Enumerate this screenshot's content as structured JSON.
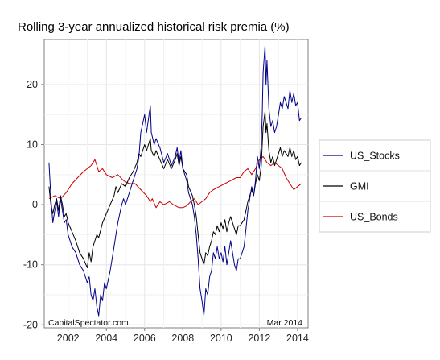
{
  "chart_data": {
    "type": "line",
    "title": "Rolling 3-year annualized historical risk premia (%)",
    "xlabel": "",
    "ylabel": "",
    "xlim": [
      2000.75,
      2014.55
    ],
    "ylim": [
      -20.5,
      27.5
    ],
    "x_ticks": [
      2002,
      2004,
      2006,
      2008,
      2010,
      2012,
      2014
    ],
    "y_ticks": [
      -20,
      -10,
      0,
      10,
      20
    ],
    "x_tick_labels": [
      "2002",
      "2004",
      "2006",
      "2008",
      "2010",
      "2012",
      "2014"
    ],
    "y_tick_labels": [
      "-20",
      "-10",
      "0",
      "10",
      "20"
    ],
    "grid": true,
    "legend_position": "right",
    "source_note": "CapitalSpectator.com",
    "date_note": "Mar 2014",
    "series": [
      {
        "name": "US_Stocks",
        "color": "#00008b",
        "points": [
          [
            2001.0,
            7.0
          ],
          [
            2001.1,
            1.0
          ],
          [
            2001.2,
            -3.0
          ],
          [
            2001.3,
            -1.0
          ],
          [
            2001.4,
            0.5
          ],
          [
            2001.5,
            -2.0
          ],
          [
            2001.6,
            1.0
          ],
          [
            2001.7,
            -1.0
          ],
          [
            2001.8,
            -3.0
          ],
          [
            2001.9,
            -2.5
          ],
          [
            2002.0,
            -5.0
          ],
          [
            2002.2,
            -7.0
          ],
          [
            2002.4,
            -8.0
          ],
          [
            2002.6,
            -10.0
          ],
          [
            2002.8,
            -11.0
          ],
          [
            2003.0,
            -13.0
          ],
          [
            2003.1,
            -12.0
          ],
          [
            2003.2,
            -15.0
          ],
          [
            2003.3,
            -16.0
          ],
          [
            2003.4,
            -14.0
          ],
          [
            2003.5,
            -17.0
          ],
          [
            2003.6,
            -18.5
          ],
          [
            2003.7,
            -15.0
          ],
          [
            2003.8,
            -16.0
          ],
          [
            2003.9,
            -13.0
          ],
          [
            2004.0,
            -14.0
          ],
          [
            2004.2,
            -11.0
          ],
          [
            2004.3,
            -9.0
          ],
          [
            2004.4,
            -7.0
          ],
          [
            2004.5,
            -5.0
          ],
          [
            2004.6,
            -3.0
          ],
          [
            2004.7,
            -1.5
          ],
          [
            2004.8,
            0.0
          ],
          [
            2004.9,
            1.0
          ],
          [
            2005.0,
            0.0
          ],
          [
            2005.2,
            2.0
          ],
          [
            2005.4,
            4.0
          ],
          [
            2005.6,
            6.0
          ],
          [
            2005.7,
            8.0
          ],
          [
            2005.8,
            12.0
          ],
          [
            2006.0,
            15.0
          ],
          [
            2006.1,
            12.0
          ],
          [
            2006.3,
            16.5
          ],
          [
            2006.35,
            12.0
          ],
          [
            2006.5,
            10.0
          ],
          [
            2006.6,
            11.0
          ],
          [
            2006.8,
            9.5
          ],
          [
            2007.0,
            7.0
          ],
          [
            2007.2,
            8.5
          ],
          [
            2007.4,
            6.5
          ],
          [
            2007.6,
            8.0
          ],
          [
            2007.7,
            9.5
          ],
          [
            2007.8,
            7.0
          ],
          [
            2007.9,
            9.0
          ],
          [
            2008.0,
            6.0
          ],
          [
            2008.2,
            4.0
          ],
          [
            2008.3,
            2.0
          ],
          [
            2008.5,
            0.0
          ],
          [
            2008.6,
            -2.0
          ],
          [
            2008.7,
            -5.0
          ],
          [
            2008.8,
            -9.0
          ],
          [
            2008.9,
            -14.0
          ],
          [
            2009.0,
            -16.0
          ],
          [
            2009.1,
            -18.5
          ],
          [
            2009.2,
            -14.0
          ],
          [
            2009.3,
            -15.0
          ],
          [
            2009.4,
            -12.0
          ],
          [
            2009.5,
            -11.0
          ],
          [
            2009.6,
            -8.0
          ],
          [
            2009.7,
            -9.0
          ],
          [
            2009.8,
            -7.0
          ],
          [
            2009.9,
            -9.0
          ],
          [
            2010.0,
            -8.0
          ],
          [
            2010.1,
            -9.5
          ],
          [
            2010.2,
            -7.0
          ],
          [
            2010.3,
            -10.0
          ],
          [
            2010.4,
            -8.0
          ],
          [
            2010.5,
            -6.0
          ],
          [
            2010.6,
            -8.0
          ],
          [
            2010.7,
            -10.0
          ],
          [
            2010.8,
            -11.0
          ],
          [
            2010.9,
            -9.0
          ],
          [
            2011.0,
            -9.0
          ],
          [
            2011.2,
            -7.0
          ],
          [
            2011.3,
            -4.0
          ],
          [
            2011.4,
            -1.0
          ],
          [
            2011.5,
            1.0
          ],
          [
            2011.6,
            3.0
          ],
          [
            2011.7,
            1.5
          ],
          [
            2011.8,
            4.0
          ],
          [
            2011.9,
            8.0
          ],
          [
            2012.0,
            6.0
          ],
          [
            2012.1,
            10.0
          ],
          [
            2012.15,
            15.0
          ],
          [
            2012.2,
            22.0
          ],
          [
            2012.3,
            26.5
          ],
          [
            2012.35,
            20.0
          ],
          [
            2012.4,
            24.0
          ],
          [
            2012.5,
            16.0
          ],
          [
            2012.6,
            13.0
          ],
          [
            2012.7,
            14.0
          ],
          [
            2012.8,
            12.0
          ],
          [
            2012.9,
            13.0
          ],
          [
            2013.0,
            15.0
          ],
          [
            2013.1,
            17.0
          ],
          [
            2013.2,
            16.0
          ],
          [
            2013.3,
            18.0
          ],
          [
            2013.4,
            17.0
          ],
          [
            2013.5,
            16.0
          ],
          [
            2013.6,
            19.0
          ],
          [
            2013.7,
            17.0
          ],
          [
            2013.8,
            18.5
          ],
          [
            2013.9,
            16.5
          ],
          [
            2014.0,
            17.0
          ],
          [
            2014.1,
            14.0
          ],
          [
            2014.2,
            14.5
          ]
        ]
      },
      {
        "name": "GMI",
        "color": "#000000",
        "points": [
          [
            2001.0,
            3.0
          ],
          [
            2001.1,
            0.0
          ],
          [
            2001.2,
            -1.5
          ],
          [
            2001.3,
            0.0
          ],
          [
            2001.4,
            1.0
          ],
          [
            2001.5,
            -1.0
          ],
          [
            2001.6,
            1.5
          ],
          [
            2001.7,
            0.0
          ],
          [
            2001.8,
            -2.0
          ],
          [
            2001.9,
            -1.5
          ],
          [
            2002.0,
            -3.0
          ],
          [
            2002.2,
            -4.5
          ],
          [
            2002.4,
            -6.0
          ],
          [
            2002.6,
            -8.0
          ],
          [
            2002.8,
            -9.0
          ],
          [
            2003.0,
            -10.5
          ],
          [
            2003.1,
            -8.0
          ],
          [
            2003.2,
            -9.5
          ],
          [
            2003.3,
            -7.0
          ],
          [
            2003.5,
            -5.0
          ],
          [
            2003.6,
            -5.5
          ],
          [
            2003.8,
            -3.0
          ],
          [
            2004.0,
            -1.5
          ],
          [
            2004.2,
            0.0
          ],
          [
            2004.4,
            1.5
          ],
          [
            2004.5,
            3.0
          ],
          [
            2004.6,
            2.0
          ],
          [
            2004.8,
            3.5
          ],
          [
            2005.0,
            3.0
          ],
          [
            2005.2,
            4.5
          ],
          [
            2005.4,
            5.5
          ],
          [
            2005.6,
            7.0
          ],
          [
            2005.7,
            8.5
          ],
          [
            2005.8,
            8.0
          ],
          [
            2006.0,
            10.0
          ],
          [
            2006.1,
            9.0
          ],
          [
            2006.3,
            11.0
          ],
          [
            2006.35,
            9.0
          ],
          [
            2006.5,
            8.0
          ],
          [
            2006.6,
            9.0
          ],
          [
            2006.8,
            7.5
          ],
          [
            2007.0,
            6.0
          ],
          [
            2007.2,
            7.5
          ],
          [
            2007.4,
            6.0
          ],
          [
            2007.6,
            7.5
          ],
          [
            2007.7,
            8.5
          ],
          [
            2007.8,
            6.5
          ],
          [
            2007.9,
            8.0
          ],
          [
            2008.0,
            6.0
          ],
          [
            2008.2,
            5.0
          ],
          [
            2008.3,
            3.0
          ],
          [
            2008.5,
            1.5
          ],
          [
            2008.6,
            0.0
          ],
          [
            2008.7,
            -2.0
          ],
          [
            2008.8,
            -5.0
          ],
          [
            2008.9,
            -8.0
          ],
          [
            2009.0,
            -9.0
          ],
          [
            2009.1,
            -10.0
          ],
          [
            2009.2,
            -8.0
          ],
          [
            2009.3,
            -8.5
          ],
          [
            2009.4,
            -7.0
          ],
          [
            2009.5,
            -6.0
          ],
          [
            2009.6,
            -4.5
          ],
          [
            2009.7,
            -5.0
          ],
          [
            2009.8,
            -3.5
          ],
          [
            2009.9,
            -4.5
          ],
          [
            2010.0,
            -3.0
          ],
          [
            2010.1,
            -4.0
          ],
          [
            2010.2,
            -2.5
          ],
          [
            2010.3,
            -4.5
          ],
          [
            2010.4,
            -3.0
          ],
          [
            2010.5,
            -2.0
          ],
          [
            2010.6,
            -3.0
          ],
          [
            2010.7,
            -4.0
          ],
          [
            2010.8,
            -5.0
          ],
          [
            2010.9,
            -3.5
          ],
          [
            2011.0,
            -3.5
          ],
          [
            2011.2,
            -2.5
          ],
          [
            2011.3,
            -1.0
          ],
          [
            2011.4,
            0.5
          ],
          [
            2011.5,
            1.5
          ],
          [
            2011.6,
            2.5
          ],
          [
            2011.7,
            1.5
          ],
          [
            2011.8,
            3.5
          ],
          [
            2011.9,
            5.0
          ],
          [
            2012.0,
            4.0
          ],
          [
            2012.1,
            6.5
          ],
          [
            2012.15,
            10.0
          ],
          [
            2012.2,
            13.0
          ],
          [
            2012.3,
            15.5
          ],
          [
            2012.35,
            12.0
          ],
          [
            2012.4,
            13.5
          ],
          [
            2012.5,
            9.0
          ],
          [
            2012.6,
            7.0
          ],
          [
            2012.7,
            8.0
          ],
          [
            2012.8,
            6.5
          ],
          [
            2012.9,
            7.5
          ],
          [
            2013.0,
            8.5
          ],
          [
            2013.1,
            9.5
          ],
          [
            2013.2,
            8.0
          ],
          [
            2013.3,
            9.0
          ],
          [
            2013.4,
            8.5
          ],
          [
            2013.5,
            8.0
          ],
          [
            2013.6,
            9.5
          ],
          [
            2013.7,
            8.0
          ],
          [
            2013.8,
            9.0
          ],
          [
            2013.9,
            7.5
          ],
          [
            2014.0,
            8.0
          ],
          [
            2014.1,
            6.5
          ],
          [
            2014.2,
            7.0
          ]
        ]
      },
      {
        "name": "US_Bonds",
        "color": "#cc0000",
        "points": [
          [
            2001.0,
            1.0
          ],
          [
            2001.3,
            1.5
          ],
          [
            2001.6,
            1.0
          ],
          [
            2001.9,
            2.0
          ],
          [
            2002.2,
            3.5
          ],
          [
            2002.5,
            4.5
          ],
          [
            2002.8,
            5.5
          ],
          [
            2003.0,
            6.0
          ],
          [
            2003.2,
            6.5
          ],
          [
            2003.4,
            7.5
          ],
          [
            2003.5,
            6.5
          ],
          [
            2003.6,
            5.5
          ],
          [
            2003.8,
            6.0
          ],
          [
            2004.0,
            5.0
          ],
          [
            2004.3,
            4.5
          ],
          [
            2004.6,
            5.0
          ],
          [
            2004.9,
            4.0
          ],
          [
            2005.2,
            3.5
          ],
          [
            2005.5,
            3.5
          ],
          [
            2005.8,
            2.5
          ],
          [
            2006.1,
            1.5
          ],
          [
            2006.3,
            0.5
          ],
          [
            2006.4,
            1.0
          ],
          [
            2006.6,
            -0.5
          ],
          [
            2006.8,
            0.5
          ],
          [
            2007.0,
            0.0
          ],
          [
            2007.3,
            0.5
          ],
          [
            2007.5,
            0.0
          ],
          [
            2007.8,
            -0.5
          ],
          [
            2008.0,
            -0.5
          ],
          [
            2008.2,
            -0.2
          ],
          [
            2008.4,
            0.5
          ],
          [
            2008.6,
            1.0
          ],
          [
            2008.8,
            0.0
          ],
          [
            2009.0,
            0.5
          ],
          [
            2009.2,
            1.0
          ],
          [
            2009.4,
            2.0
          ],
          [
            2009.6,
            2.5
          ],
          [
            2009.9,
            3.0
          ],
          [
            2010.2,
            3.5
          ],
          [
            2010.5,
            4.0
          ],
          [
            2010.8,
            4.5
          ],
          [
            2011.0,
            4.5
          ],
          [
            2011.2,
            5.5
          ],
          [
            2011.4,
            6.0
          ],
          [
            2011.6,
            5.0
          ],
          [
            2011.8,
            6.0
          ],
          [
            2012.0,
            7.5
          ],
          [
            2012.2,
            8.0
          ],
          [
            2012.4,
            7.0
          ],
          [
            2012.6,
            6.5
          ],
          [
            2012.8,
            7.0
          ],
          [
            2013.0,
            6.5
          ],
          [
            2013.2,
            6.0
          ],
          [
            2013.4,
            4.5
          ],
          [
            2013.6,
            3.5
          ],
          [
            2013.8,
            2.5
          ],
          [
            2014.0,
            3.0
          ],
          [
            2014.2,
            3.5
          ]
        ]
      }
    ]
  }
}
